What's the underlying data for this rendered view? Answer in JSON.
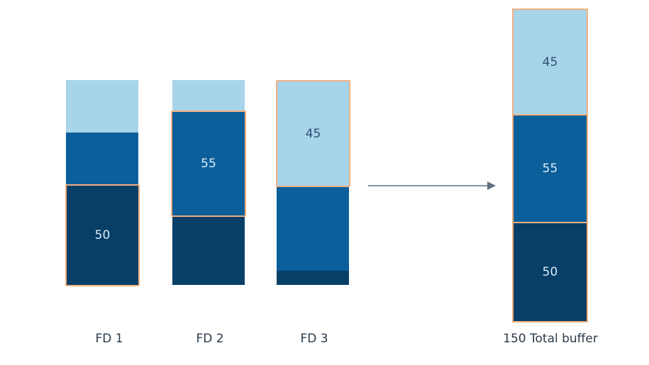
{
  "groups": [
    {
      "name": "FD 1",
      "segments": [
        {
          "tone": "light",
          "text": ""
        },
        {
          "tone": "mid",
          "text": ""
        },
        {
          "tone": "dark",
          "text": "50",
          "highlighted": true
        }
      ]
    },
    {
      "name": "FD 2",
      "segments": [
        {
          "tone": "light",
          "text": ""
        },
        {
          "tone": "mid",
          "text": "55",
          "highlighted": true
        },
        {
          "tone": "dark",
          "text": ""
        }
      ]
    },
    {
      "name": "FD 3",
      "segments": [
        {
          "tone": "light",
          "text": "45",
          "highlighted": true
        },
        {
          "tone": "mid",
          "text": ""
        },
        {
          "tone": "dark",
          "text": ""
        }
      ]
    }
  ],
  "result": {
    "label": "150 Total buffer",
    "segments": [
      {
        "tone": "light",
        "text": "45"
      },
      {
        "tone": "mid",
        "text": "55"
      },
      {
        "tone": "dark",
        "text": "50"
      }
    ]
  },
  "colors": {
    "light": "#a8d4ea",
    "mid": "#0b5f9a",
    "dark": "#073f68",
    "highlight_border": "#f3b07f",
    "arrow": "#5f7080"
  }
}
